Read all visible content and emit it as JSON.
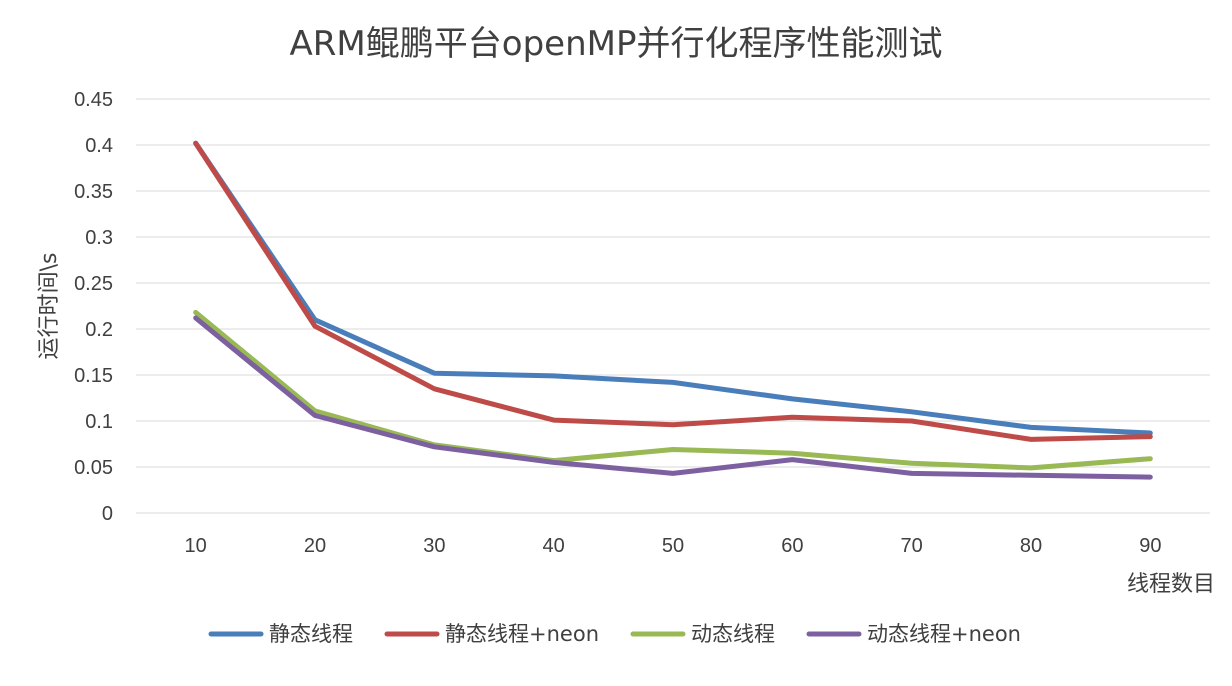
{
  "chart_data": {
    "type": "line",
    "title": "ARM鲲鹏平台openMP并行化程序性能测试",
    "xlabel": "线程数目",
    "ylabel": "运行时间\\s",
    "categories": [
      "10",
      "20",
      "30",
      "40",
      "50",
      "60",
      "70",
      "80",
      "90"
    ],
    "ylim": [
      0,
      0.45
    ],
    "yticks": [
      "0",
      "0.05",
      "0.1",
      "0.15",
      "0.2",
      "0.25",
      "0.3",
      "0.35",
      "0.4",
      "0.45"
    ],
    "grid": true,
    "legend_position": "bottom",
    "series": [
      {
        "name": "静态线程",
        "color": "#4a7ebb",
        "values": [
          0.402,
          0.21,
          0.152,
          0.149,
          0.142,
          0.124,
          0.11,
          0.093,
          0.087
        ]
      },
      {
        "name": "静态线程+neon",
        "color": "#be4b48",
        "values": [
          0.402,
          0.203,
          0.135,
          0.101,
          0.096,
          0.104,
          0.1,
          0.08,
          0.083
        ]
      },
      {
        "name": "动态线程",
        "color": "#98b954",
        "values": [
          0.218,
          0.111,
          0.074,
          0.057,
          0.069,
          0.065,
          0.054,
          0.049,
          0.059
        ]
      },
      {
        "name": "动态线程+neon",
        "color": "#7d60a0",
        "values": [
          0.212,
          0.106,
          0.072,
          0.055,
          0.043,
          0.058,
          0.043,
          0.041,
          0.039
        ]
      }
    ]
  }
}
